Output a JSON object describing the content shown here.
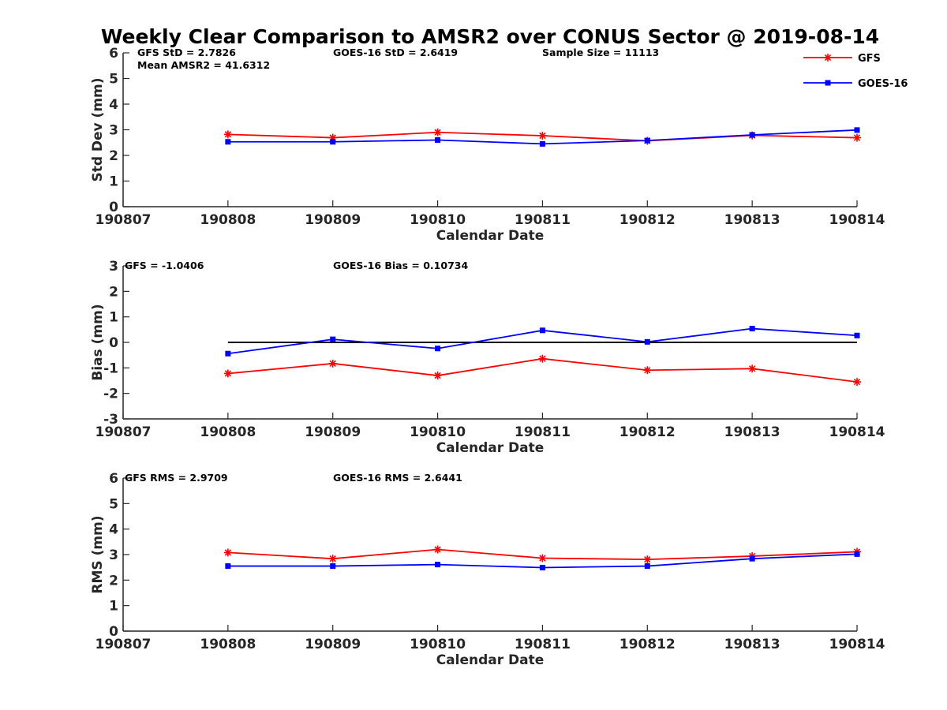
{
  "chart_data": {
    "type": "line",
    "title": "Weekly Clear Comparison to AMSR2 over CONUS Sector @ 2019-08-14",
    "legend": {
      "placement": "top-right",
      "entries": [
        {
          "name": "GFS",
          "color": "#ff0000",
          "marker": "asterisk"
        },
        {
          "name": "GOES-16",
          "color": "#0000ff",
          "marker": "square"
        }
      ]
    },
    "x_categories": [
      "190807",
      "190808",
      "190809",
      "190810",
      "190811",
      "190812",
      "190813",
      "190814"
    ],
    "panels": [
      {
        "ylabel": "Std Dev (mm)",
        "xlabel": "Calendar Date",
        "ylim": [
          0,
          6
        ],
        "yticks": [
          "0",
          "1",
          "2",
          "3",
          "4",
          "5",
          "6"
        ],
        "annotations": [
          "GFS StD = 2.7826",
          "GOES-16 StD = 2.6419",
          "Sample Size = 11113",
          "Mean AMSR2 = 41.6312"
        ],
        "series": [
          {
            "name": "GFS",
            "color": "#ff0000",
            "x": [
              "190808",
              "190809",
              "190810",
              "190811",
              "190812",
              "190813",
              "190814"
            ],
            "values": [
              2.82,
              2.69,
              2.9,
              2.77,
              2.57,
              2.78,
              2.69
            ]
          },
          {
            "name": "GOES-16",
            "color": "#0000ff",
            "x": [
              "190808",
              "190809",
              "190810",
              "190811",
              "190812",
              "190813",
              "190814"
            ],
            "values": [
              2.53,
              2.53,
              2.6,
              2.45,
              2.58,
              2.8,
              2.99
            ]
          }
        ]
      },
      {
        "ylabel": "Bias (mm)",
        "xlabel": "Calendar Date",
        "ylim": [
          -3,
          3
        ],
        "yticks": [
          "-3",
          "-2",
          "-1",
          "0",
          "1",
          "2",
          "3"
        ],
        "zero_line": true,
        "annotations": [
          "GFS = -1.0406",
          "GOES-16 Bias  = 0.10734"
        ],
        "series": [
          {
            "name": "GFS",
            "color": "#ff0000",
            "x": [
              "190808",
              "190809",
              "190810",
              "190811",
              "190812",
              "190813",
              "190814"
            ],
            "values": [
              -1.22,
              -0.83,
              -1.3,
              -0.64,
              -1.09,
              -1.03,
              -1.55
            ]
          },
          {
            "name": "GOES-16",
            "color": "#0000ff",
            "x": [
              "190808",
              "190809",
              "190810",
              "190811",
              "190812",
              "190813",
              "190814"
            ],
            "values": [
              -0.44,
              0.12,
              -0.24,
              0.47,
              0.02,
              0.54,
              0.27
            ]
          }
        ]
      },
      {
        "ylabel": "RMS (mm)",
        "xlabel": "Calendar Date",
        "ylim": [
          0,
          6
        ],
        "yticks": [
          "0",
          "1",
          "2",
          "3",
          "4",
          "5",
          "6"
        ],
        "annotations": [
          "GFS RMS = 2.9709",
          "GOES-16 RMS = 2.6441"
        ],
        "series": [
          {
            "name": "GFS",
            "color": "#ff0000",
            "x": [
              "190808",
              "190809",
              "190810",
              "190811",
              "190812",
              "190813",
              "190814"
            ],
            "values": [
              3.08,
              2.84,
              3.2,
              2.86,
              2.81,
              2.94,
              3.11
            ]
          },
          {
            "name": "GOES-16",
            "color": "#0000ff",
            "x": [
              "190808",
              "190809",
              "190810",
              "190811",
              "190812",
              "190813",
              "190814"
            ],
            "values": [
              2.55,
              2.55,
              2.61,
              2.49,
              2.55,
              2.84,
              3.02
            ]
          }
        ]
      }
    ],
    "grid": false
  }
}
